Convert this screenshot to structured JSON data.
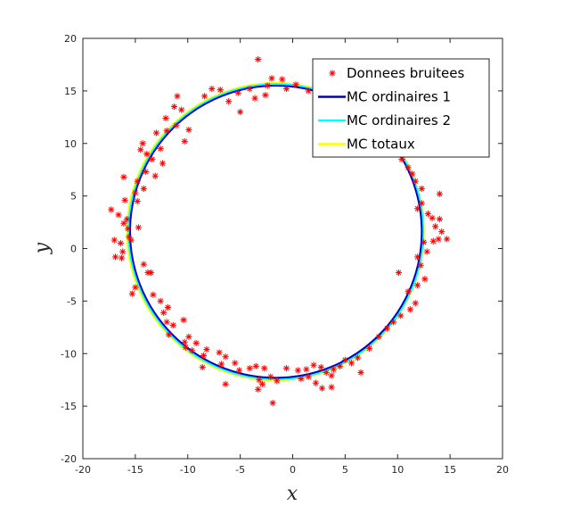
{
  "chart_data": {
    "type": "scatter",
    "title": "",
    "xlabel": "x",
    "ylabel": "y",
    "xlim": [
      -20,
      20
    ],
    "ylim": [
      -20,
      20
    ],
    "xticks": [
      -20,
      -15,
      -10,
      -5,
      0,
      5,
      10,
      15,
      20
    ],
    "yticks": [
      -20,
      -15,
      -10,
      -5,
      0,
      5,
      10,
      15,
      20
    ],
    "grid": false,
    "legend_position": "top-right",
    "series": [
      {
        "name": "Donnees bruitees",
        "kind": "scatter",
        "marker": "asterisk",
        "color": "#ff0000",
        "points": [
          [
            -3.3,
            18.0
          ],
          [
            -2.0,
            16.2
          ],
          [
            -4.1,
            15.2
          ],
          [
            -2.4,
            15.5
          ],
          [
            -1.0,
            16.1
          ],
          [
            0.3,
            15.6
          ],
          [
            1.5,
            15.0
          ],
          [
            -5.2,
            14.8
          ],
          [
            -3.6,
            14.3
          ],
          [
            -2.6,
            14.6
          ],
          [
            -5.0,
            13.0
          ],
          [
            -0.6,
            15.2
          ],
          [
            -6.1,
            14.0
          ],
          [
            2.4,
            14.7
          ],
          [
            -7.7,
            15.2
          ],
          [
            -6.9,
            15.1
          ],
          [
            -8.4,
            14.5
          ],
          [
            -11.0,
            14.5
          ],
          [
            -11.3,
            13.5
          ],
          [
            -10.6,
            13.2
          ],
          [
            -12.1,
            12.4
          ],
          [
            -12.0,
            11.2
          ],
          [
            -11.1,
            11.7
          ],
          [
            -9.9,
            11.3
          ],
          [
            -10.3,
            10.2
          ],
          [
            -13.0,
            11.0
          ],
          [
            -14.3,
            10.0
          ],
          [
            -14.5,
            9.4
          ],
          [
            -12.6,
            9.5
          ],
          [
            -13.9,
            9.0
          ],
          [
            -12.4,
            8.1
          ],
          [
            -13.4,
            8.5
          ],
          [
            -16.1,
            6.8
          ],
          [
            -14.0,
            7.3
          ],
          [
            -13.1,
            6.9
          ],
          [
            -14.8,
            6.4
          ],
          [
            -14.2,
            5.7
          ],
          [
            -15.0,
            5.3
          ],
          [
            -14.8,
            4.5
          ],
          [
            -16.0,
            4.6
          ],
          [
            -17.3,
            3.7
          ],
          [
            -16.6,
            3.2
          ],
          [
            -15.8,
            2.8
          ],
          [
            -16.1,
            2.4
          ],
          [
            -15.7,
            1.9
          ],
          [
            -14.7,
            2.0
          ],
          [
            -15.6,
            1.1
          ],
          [
            -17.0,
            0.8
          ],
          [
            -16.4,
            0.5
          ],
          [
            -15.4,
            0.8
          ],
          [
            -16.2,
            -0.3
          ],
          [
            -16.9,
            -0.8
          ],
          [
            -16.3,
            -0.9
          ],
          [
            -14.2,
            -1.5
          ],
          [
            -13.5,
            -2.3
          ],
          [
            -13.8,
            -2.3
          ],
          [
            -15.0,
            -3.7
          ],
          [
            -15.3,
            -4.3
          ],
          [
            -13.3,
            -4.4
          ],
          [
            -12.6,
            -5.0
          ],
          [
            -11.9,
            -5.6
          ],
          [
            -12.3,
            -6.1
          ],
          [
            -12.0,
            -7.0
          ],
          [
            -11.4,
            -7.3
          ],
          [
            -11.8,
            -8.2
          ],
          [
            -10.4,
            -6.8
          ],
          [
            -9.9,
            -8.4
          ],
          [
            -10.3,
            -8.9
          ],
          [
            -9.2,
            -9.0
          ],
          [
            -10.2,
            -9.4
          ],
          [
            -9.6,
            -9.7
          ],
          [
            -8.2,
            -9.6
          ],
          [
            -8.5,
            -10.2
          ],
          [
            -7.0,
            -9.9
          ],
          [
            -6.4,
            -10.3
          ],
          [
            -6.8,
            -11.0
          ],
          [
            -8.6,
            -11.3
          ],
          [
            -5.5,
            -10.9
          ],
          [
            -5.1,
            -11.6
          ],
          [
            -4.1,
            -11.4
          ],
          [
            -3.5,
            -11.2
          ],
          [
            -2.7,
            -11.4
          ],
          [
            -2.1,
            -12.2
          ],
          [
            -3.2,
            -12.5
          ],
          [
            -1.5,
            -12.6
          ],
          [
            -2.9,
            -12.9
          ],
          [
            -3.3,
            -13.4
          ],
          [
            -6.4,
            -12.9
          ],
          [
            -1.9,
            -14.7
          ],
          [
            -0.6,
            -11.4
          ],
          [
            0.5,
            -11.6
          ],
          [
            0.8,
            -12.4
          ],
          [
            1.3,
            -11.5
          ],
          [
            1.5,
            -12.2
          ],
          [
            2.0,
            -11.1
          ],
          [
            2.7,
            -11.3
          ],
          [
            3.2,
            -11.8
          ],
          [
            3.7,
            -12.1
          ],
          [
            3.9,
            -11.5
          ],
          [
            4.5,
            -11.2
          ],
          [
            5.0,
            -10.6
          ],
          [
            5.6,
            -10.9
          ],
          [
            6.2,
            -10.4
          ],
          [
            2.2,
            -12.8
          ],
          [
            2.8,
            -13.3
          ],
          [
            3.7,
            -13.2
          ],
          [
            6.5,
            -11.8
          ],
          [
            7.3,
            -9.5
          ],
          [
            8.2,
            -8.4
          ],
          [
            9.0,
            -7.6
          ],
          [
            9.6,
            -7.0
          ],
          [
            10.3,
            -6.4
          ],
          [
            11.2,
            -5.8
          ],
          [
            11.7,
            -5.2
          ],
          [
            11.0,
            -4.1
          ],
          [
            11.9,
            -3.5
          ],
          [
            12.6,
            -2.9
          ],
          [
            10.1,
            -2.3
          ],
          [
            12.2,
            -1.6
          ],
          [
            11.9,
            -0.8
          ],
          [
            12.8,
            -0.3
          ],
          [
            12.5,
            0.6
          ],
          [
            13.4,
            0.7
          ],
          [
            13.9,
            0.9
          ],
          [
            14.7,
            0.9
          ],
          [
            14.2,
            1.6
          ],
          [
            13.6,
            2.1
          ],
          [
            14.0,
            2.8
          ],
          [
            13.3,
            2.9
          ],
          [
            12.9,
            3.3
          ],
          [
            11.9,
            3.8
          ],
          [
            12.3,
            4.3
          ],
          [
            14.0,
            5.2
          ],
          [
            12.3,
            5.7
          ],
          [
            11.7,
            6.4
          ],
          [
            11.4,
            7.1
          ],
          [
            11.0,
            7.7
          ],
          [
            10.4,
            8.5
          ],
          [
            9.8,
            9.3
          ]
        ]
      },
      {
        "name": "MC ordinaires 1",
        "kind": "circle",
        "color": "#0000cc",
        "center": [
          -1.6,
          1.6
        ],
        "radius": 13.9
      },
      {
        "name": "MC ordinaires 2",
        "kind": "circle",
        "color": "#00ffff",
        "center": [
          -1.6,
          1.6
        ],
        "radius": 14.05
      },
      {
        "name": "MC totaux",
        "kind": "circle",
        "color": "#ffff00",
        "center": [
          -1.65,
          1.6
        ],
        "radius": 14.15
      }
    ]
  }
}
